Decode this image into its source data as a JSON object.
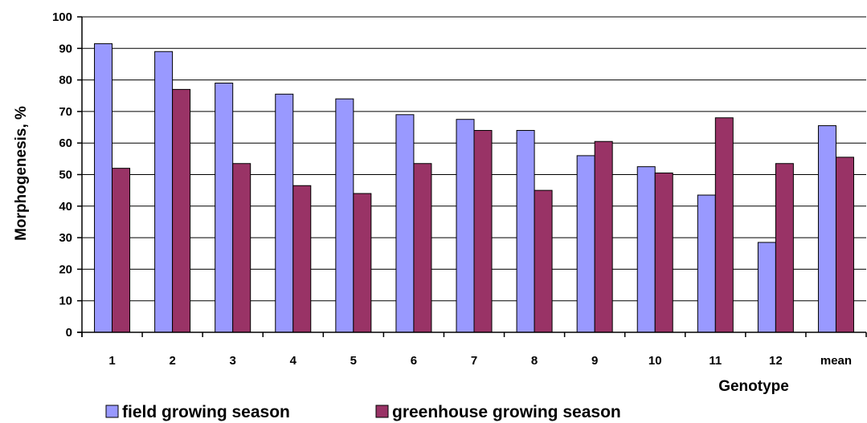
{
  "chart_data": {
    "type": "bar",
    "title": "",
    "xlabel": "Genotype",
    "ylabel": "Morphogenesis, %",
    "ylim": [
      0,
      100
    ],
    "yticks": [
      0,
      10,
      20,
      30,
      40,
      50,
      60,
      70,
      80,
      90,
      100
    ],
    "grid": true,
    "legend_position": "bottom",
    "categories": [
      "1",
      "2",
      "3",
      "4",
      "5",
      "6",
      "7",
      "8",
      "9",
      "10",
      "11",
      "12",
      "mean"
    ],
    "series": [
      {
        "name": "field growing season",
        "color": "#9999ff",
        "values": [
          91.5,
          89,
          79,
          75.5,
          74,
          69,
          67.5,
          64,
          56,
          52.5,
          43.5,
          28.5,
          65.5
        ]
      },
      {
        "name": "greenhouse growing season",
        "color": "#993366",
        "values": [
          52,
          77,
          53.5,
          46.5,
          44,
          53.5,
          64,
          45,
          60.5,
          50.5,
          68,
          53.5,
          55.5
        ]
      }
    ]
  }
}
